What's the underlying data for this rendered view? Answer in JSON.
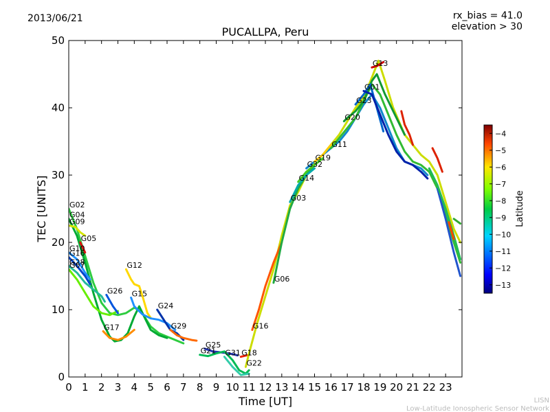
{
  "header": {
    "date": "2013/06/21",
    "rx_bias": "rx_bias = 41.0",
    "elevation": "elevation > 30"
  },
  "footer": {
    "line1": "LISN",
    "line2": "Low-Latitude Ionospheric Sensor Network"
  },
  "chart_data": {
    "type": "line",
    "title": "PUCALLPA, Peru",
    "xlabel": "Time [UT]",
    "ylabel": "TEC [UNITS]",
    "xlim": [
      0,
      24
    ],
    "ylim": [
      0,
      50
    ],
    "x_ticks": [
      0,
      1,
      2,
      3,
      4,
      5,
      6,
      7,
      8,
      9,
      10,
      11,
      12,
      13,
      14,
      15,
      16,
      17,
      18,
      19,
      20,
      21,
      22,
      23
    ],
    "y_ticks": [
      0,
      10,
      20,
      30,
      40,
      50
    ],
    "grid": false,
    "colorbar": {
      "label": "Latitude",
      "min": -13.5,
      "max": -3.5,
      "ticks": [
        -4,
        -5,
        -6,
        -7,
        -8,
        -9,
        -10,
        -11,
        -12,
        -13
      ]
    },
    "series": [
      {
        "name": "G02",
        "color": "#2ecc40",
        "points": [
          [
            0.0,
            25.0
          ],
          [
            0.5,
            22.0
          ],
          [
            1.0,
            18.0
          ],
          [
            1.5,
            14.0
          ],
          [
            2.0,
            11.0
          ],
          [
            2.5,
            9.5
          ],
          [
            3.0,
            9.2
          ],
          [
            3.5,
            9.5
          ],
          [
            4.0,
            10.3
          ],
          [
            4.4,
            9.8
          ],
          [
            5.0,
            7.5
          ],
          [
            5.5,
            6.5
          ],
          [
            6.0,
            6.0
          ],
          [
            6.5,
            5.5
          ],
          [
            7.0,
            5.0
          ]
        ]
      },
      {
        "name": "G04",
        "color": "#00aa33",
        "points": [
          [
            0.0,
            23.5
          ],
          [
            0.5,
            21.0
          ],
          [
            1.0,
            17.0
          ],
          [
            1.5,
            12.5
          ],
          [
            2.0,
            8.5
          ],
          [
            2.5,
            6.0
          ],
          [
            2.8,
            5.3
          ],
          [
            3.2,
            5.5
          ],
          [
            3.6,
            6.5
          ],
          [
            4.0,
            9.0
          ],
          [
            4.3,
            10.5
          ],
          [
            4.7,
            8.5
          ],
          [
            5.0,
            7.0
          ],
          [
            5.5,
            6.2
          ],
          [
            6.0,
            5.8
          ]
        ]
      },
      {
        "name": "G09",
        "color": "#d4e600",
        "points": [
          [
            0.0,
            22.5
          ],
          [
            0.4,
            22.3
          ],
          [
            0.7,
            21.5
          ],
          [
            1.0,
            21.0
          ]
        ]
      },
      {
        "name": "G05",
        "color": "#dd1111",
        "points": [
          [
            0.7,
            20.0
          ],
          [
            1.0,
            18.5
          ]
        ]
      },
      {
        "name": "G10",
        "color": "#1e90ff",
        "points": [
          [
            0.0,
            18.5
          ],
          [
            0.5,
            17.5
          ],
          [
            1.0,
            15.5
          ],
          [
            1.3,
            14.5
          ]
        ]
      },
      {
        "name": "G16",
        "color": "#0044cc",
        "points": [
          [
            0.0,
            17.8
          ],
          [
            0.5,
            16.5
          ],
          [
            1.0,
            15.0
          ],
          [
            1.3,
            13.8
          ]
        ]
      },
      {
        "name": "G28",
        "color": "#22bb99",
        "points": [
          [
            0.0,
            16.5
          ],
          [
            0.5,
            15.5
          ],
          [
            1.0,
            14.0
          ],
          [
            1.5,
            13.0
          ],
          [
            2.0,
            12.0
          ],
          [
            2.2,
            11.2
          ]
        ]
      },
      {
        "name": "G07",
        "color": "#66ee00",
        "points": [
          [
            0.0,
            16.0
          ],
          [
            0.5,
            14.5
          ],
          [
            1.0,
            12.5
          ],
          [
            1.5,
            10.5
          ],
          [
            2.0,
            9.5
          ],
          [
            2.5,
            9.2
          ],
          [
            3.0,
            9.8
          ]
        ]
      },
      {
        "name": "G12",
        "color": "#ffd800",
        "points": [
          [
            3.5,
            16.0
          ],
          [
            3.8,
            14.5
          ],
          [
            4.0,
            13.8
          ],
          [
            4.3,
            13.5
          ],
          [
            4.5,
            12.0
          ],
          [
            4.8,
            9.5
          ],
          [
            5.0,
            8.8
          ]
        ]
      },
      {
        "name": "G26",
        "color": "#0055dd",
        "points": [
          [
            2.3,
            12.2
          ],
          [
            2.7,
            10.5
          ],
          [
            3.0,
            9.5
          ]
        ]
      },
      {
        "name": "G15",
        "color": "#1e90ff",
        "points": [
          [
            3.8,
            11.8
          ],
          [
            4.0,
            10.5
          ],
          [
            4.5,
            9.3
          ],
          [
            5.0,
            8.7
          ],
          [
            5.5,
            8.5
          ],
          [
            6.0,
            8.0
          ],
          [
            6.5,
            7.0
          ]
        ]
      },
      {
        "name": "G17",
        "color": "#ff8c00",
        "points": [
          [
            2.1,
            6.8
          ],
          [
            2.5,
            5.8
          ],
          [
            3.0,
            5.5
          ],
          [
            3.5,
            6.0
          ],
          [
            4.0,
            7.0
          ]
        ]
      },
      {
        "name": "G24",
        "color": "#0033aa",
        "points": [
          [
            5.4,
            10.0
          ],
          [
            5.8,
            8.5
          ],
          [
            6.2,
            7.0
          ],
          [
            6.6,
            6.5
          ],
          [
            7.0,
            5.5
          ]
        ]
      },
      {
        "name": "G29",
        "color": "#ff6a00",
        "points": [
          [
            6.2,
            7.0
          ],
          [
            6.6,
            6.2
          ],
          [
            7.0,
            5.8
          ],
          [
            7.5,
            5.5
          ],
          [
            7.8,
            5.4
          ]
        ]
      },
      {
        "name": "G25",
        "color": "#2233aa",
        "points": [
          [
            8.3,
            4.2
          ],
          [
            8.8,
            3.8
          ],
          [
            9.5,
            3.6
          ],
          [
            10.0,
            3.4
          ],
          [
            10.3,
            3.2
          ]
        ]
      },
      {
        "name": "G21",
        "color": "#00bb55",
        "points": [
          [
            8.0,
            3.3
          ],
          [
            8.5,
            3.1
          ],
          [
            9.0,
            3.5
          ],
          [
            9.5,
            3.8
          ],
          [
            10.0,
            2.5
          ],
          [
            10.4,
            1.0
          ],
          [
            10.8,
            0.5
          ],
          [
            11.0,
            1.0
          ]
        ]
      },
      {
        "name": "G31",
        "color": "#33ccaa",
        "points": [
          [
            9.5,
            3.0
          ],
          [
            10.0,
            1.5
          ],
          [
            10.5,
            0.3
          ],
          [
            11.0,
            0.5
          ]
        ]
      },
      {
        "name": "G18",
        "color": "#ee2200",
        "points": [
          [
            10.5,
            3.0
          ],
          [
            11.0,
            3.3
          ]
        ]
      },
      {
        "name": "G22",
        "color": "#ccdd00",
        "points": [
          [
            10.8,
            1.5
          ],
          [
            11.0,
            3.5
          ],
          [
            11.5,
            8.0
          ],
          [
            12.0,
            12.0
          ],
          [
            12.5,
            16.0
          ],
          [
            13.0,
            21.0
          ],
          [
            13.5,
            25.5
          ],
          [
            14.0,
            27.5
          ],
          [
            14.5,
            30.0
          ],
          [
            15.0,
            32.0
          ],
          [
            15.5,
            33.0
          ],
          [
            16.0,
            34.5
          ],
          [
            16.5,
            36.0
          ],
          [
            17.0,
            38.0
          ],
          [
            17.5,
            40.0
          ],
          [
            18.0,
            41.5
          ],
          [
            18.5,
            44.5
          ],
          [
            18.9,
            47.0
          ],
          [
            19.3,
            44.0
          ],
          [
            19.8,
            40.0
          ],
          [
            20.5,
            36.0
          ],
          [
            21.0,
            34.5
          ],
          [
            21.5,
            33.0
          ],
          [
            22.0,
            32.0
          ],
          [
            22.5,
            30.0
          ],
          [
            23.0,
            26.0
          ],
          [
            23.5,
            22.0
          ],
          [
            23.9,
            20.0
          ]
        ]
      },
      {
        "name": "G16",
        "color": "#ff5500",
        "points": [
          [
            11.2,
            7.0
          ],
          [
            11.6,
            10.0
          ],
          [
            12.0,
            13.5
          ],
          [
            12.5,
            17.0
          ],
          [
            13.0,
            20.0
          ]
        ]
      },
      {
        "name": "G06",
        "color": "#22aa44",
        "points": [
          [
            12.5,
            14.0
          ],
          [
            13.0,
            20.0
          ],
          [
            13.5,
            25.0
          ],
          [
            14.0,
            28.0
          ],
          [
            14.5,
            30.0
          ],
          [
            15.0,
            31.5
          ]
        ]
      },
      {
        "name": "G03",
        "color": "#00aaaa",
        "points": [
          [
            13.5,
            26.0
          ],
          [
            14.0,
            28.5
          ],
          [
            14.5,
            30.0
          ],
          [
            15.0,
            31.0
          ]
        ]
      },
      {
        "name": "G14",
        "color": "#44cc22",
        "points": [
          [
            14.0,
            29.0
          ],
          [
            14.5,
            30.5
          ],
          [
            15.0,
            31.5
          ],
          [
            15.5,
            32.5
          ]
        ]
      },
      {
        "name": "G32",
        "color": "#1188cc",
        "points": [
          [
            14.5,
            31.0
          ],
          [
            15.0,
            32.0
          ],
          [
            15.5,
            33.0
          ],
          [
            16.0,
            34.0
          ],
          [
            16.5,
            35.0
          ],
          [
            17.0,
            36.5
          ],
          [
            17.5,
            38.5
          ],
          [
            18.0,
            40.5
          ],
          [
            18.5,
            42.0
          ],
          [
            19.0,
            40.0
          ],
          [
            19.5,
            37.0
          ],
          [
            20.0,
            34.0
          ],
          [
            20.5,
            32.0
          ],
          [
            21.0,
            31.5
          ],
          [
            21.5,
            31.0
          ],
          [
            21.9,
            30.0
          ]
        ]
      },
      {
        "name": "G19",
        "color": "#ffcc00",
        "points": [
          [
            15.0,
            32.0
          ],
          [
            15.5,
            33.0
          ],
          [
            16.0,
            34.5
          ]
        ]
      },
      {
        "name": "G11",
        "color": "#33bb33",
        "points": [
          [
            16.0,
            34.0
          ],
          [
            16.5,
            35.5
          ],
          [
            17.0,
            37.0
          ],
          [
            17.5,
            38.5
          ],
          [
            18.0,
            41.0
          ],
          [
            18.5,
            43.5
          ],
          [
            19.0,
            42.0
          ],
          [
            19.5,
            39.0
          ],
          [
            20.0,
            36.0
          ],
          [
            20.5,
            33.5
          ],
          [
            21.0,
            32.0
          ],
          [
            21.5,
            31.5
          ],
          [
            22.0,
            30.5
          ],
          [
            22.5,
            28.0
          ],
          [
            23.0,
            24.0
          ],
          [
            23.5,
            20.0
          ],
          [
            23.9,
            17.0
          ]
        ]
      },
      {
        "name": "G20",
        "color": "#119933",
        "points": [
          [
            16.8,
            38.0
          ],
          [
            17.0,
            38.5
          ],
          [
            17.5,
            39.5
          ],
          [
            18.0,
            41.0
          ],
          [
            18.5,
            44.0
          ],
          [
            18.8,
            45.0
          ],
          [
            19.3,
            42.0
          ],
          [
            20.0,
            38.5
          ],
          [
            20.5,
            36.0
          ]
        ]
      },
      {
        "name": "G23",
        "color": "#0066cc",
        "points": [
          [
            17.5,
            40.5
          ],
          [
            18.0,
            42.0
          ],
          [
            18.4,
            43.5
          ],
          [
            18.8,
            40.0
          ],
          [
            19.2,
            36.5
          ]
        ]
      },
      {
        "name": "G01",
        "color": "#0022aa",
        "points": [
          [
            18.0,
            42.5
          ],
          [
            18.5,
            42.0
          ],
          [
            19.0,
            39.0
          ],
          [
            19.5,
            36.0
          ],
          [
            20.0,
            33.5
          ],
          [
            20.5,
            32.0
          ],
          [
            21.0,
            31.5
          ],
          [
            21.5,
            30.5
          ],
          [
            21.9,
            29.5
          ]
        ]
      },
      {
        "name": "G13",
        "color": "#cc0000",
        "points": [
          [
            18.5,
            46.0
          ],
          [
            18.8,
            46.2
          ],
          [
            19.2,
            46.8
          ]
        ]
      },
      {
        "name": "",
        "color": "#dd2200",
        "points": [
          [
            20.3,
            39.5
          ],
          [
            20.5,
            37.5
          ],
          [
            20.8,
            36.0
          ],
          [
            21.0,
            34.5
          ]
        ]
      },
      {
        "name": "",
        "color": "#dd2200",
        "points": [
          [
            22.2,
            34.0
          ],
          [
            22.5,
            32.5
          ],
          [
            22.8,
            30.5
          ]
        ]
      },
      {
        "name": "",
        "color": "#2255cc",
        "points": [
          [
            22.5,
            28.0
          ],
          [
            23.0,
            23.5
          ],
          [
            23.5,
            18.5
          ],
          [
            23.9,
            15.0
          ]
        ]
      },
      {
        "name": "",
        "color": "#22bb55",
        "points": [
          [
            22.0,
            31.0
          ],
          [
            22.5,
            28.5
          ],
          [
            23.0,
            25.0
          ],
          [
            23.5,
            21.0
          ],
          [
            23.9,
            17.5
          ]
        ]
      },
      {
        "name": "",
        "color": "#33aa33",
        "points": [
          [
            23.5,
            23.5
          ],
          [
            23.9,
            22.8
          ]
        ]
      },
      {
        "name": "",
        "color": "#ff4400",
        "points": [
          [
            23.2,
            23.0
          ],
          [
            23.5,
            20.5
          ]
        ]
      }
    ]
  }
}
